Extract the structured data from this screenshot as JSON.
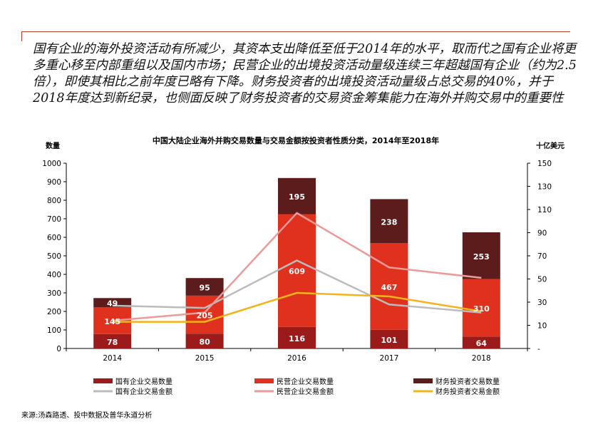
{
  "headline": "国有企业的海外投资活动有所减少，其资本支出降低至低于2014年的水平，取而代之国有企业将更多重心移至内部重组以及国内市场；民营企业的出境投资活动量级连续三年超越国有企业（约为2.5倍），即使其相比之前年度已略有下降。财务投资者的出境投资活动量级占总交易的40%，并于2018年度达到新纪录，也侧面反映了财务投资者的交易资金筹集能力在海外并购交易中的重要性",
  "source": "来源:汤森路透、投中数据及普华永道分析",
  "chart_data": {
    "type": "bar",
    "title": "中国大陆企业海外并购交易数量与交易金额按投资者性质分类，2014年至2018年",
    "ylabel": "数量",
    "y2label": "十亿美元",
    "categories": [
      "2014",
      "2015",
      "2016",
      "2017",
      "2018"
    ],
    "ylim": [
      0,
      1000
    ],
    "yticks": [
      0,
      100,
      200,
      300,
      400,
      500,
      600,
      700,
      800,
      900,
      1000
    ],
    "y2lim": [
      -10,
      150
    ],
    "y2ticks": [
      -10,
      10,
      30,
      50,
      70,
      90,
      110,
      130,
      150
    ],
    "y2ticklabels": [
      "-",
      "10",
      "30",
      "50",
      "70",
      "90",
      "110",
      "130",
      "150"
    ],
    "stacked": true,
    "series": [
      {
        "name": "国有企业交易数量",
        "kind": "bar",
        "axis": "left",
        "color": "#9b1b1b",
        "values": [
          78,
          80,
          116,
          101,
          64
        ]
      },
      {
        "name": "民营企业交易数量",
        "kind": "bar",
        "axis": "left",
        "color": "#e0301e",
        "values": [
          145,
          205,
          609,
          467,
          310
        ]
      },
      {
        "name": "财务投资者交易数量",
        "kind": "bar",
        "axis": "left",
        "color": "#5c1c1c",
        "values": [
          49,
          95,
          195,
          238,
          253
        ]
      },
      {
        "name": "国有企业交易金额",
        "kind": "line",
        "axis": "right",
        "color": "#bcbcbc",
        "values": [
          27,
          25,
          66,
          28,
          21
        ]
      },
      {
        "name": "民营企业交易金额",
        "kind": "line",
        "axis": "right",
        "color": "#eb9a9a",
        "values": [
          14,
          21,
          107,
          60,
          51
        ]
      },
      {
        "name": "财务投资者交易金额",
        "kind": "line",
        "axis": "right",
        "color": "#f2b31b",
        "values": [
          13,
          13,
          38,
          35,
          22
        ]
      }
    ],
    "legend_position": "bottom"
  }
}
